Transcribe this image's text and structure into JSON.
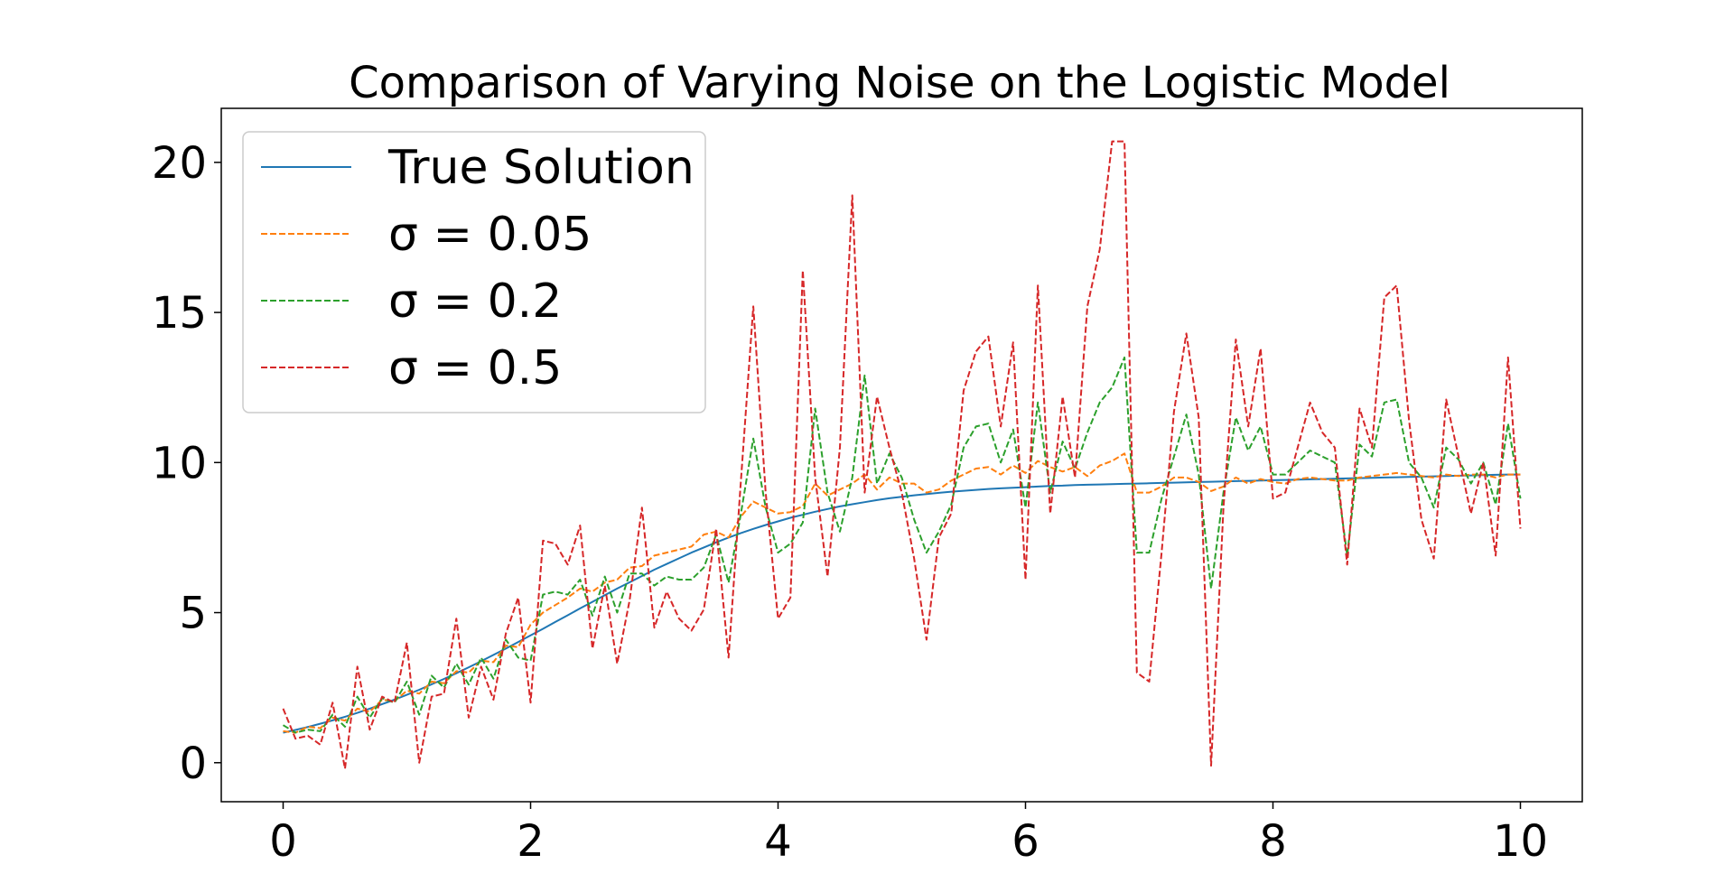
{
  "chart_data": {
    "type": "line",
    "title": "Comparison of Varying Noise on the Logistic Model",
    "xlabel": "",
    "ylabel": "",
    "xlim": [
      -0.5,
      10.5
    ],
    "ylim": [
      -1.3,
      21.8
    ],
    "xticks": [
      0,
      2,
      4,
      6,
      8,
      10
    ],
    "xtick_labels": [
      "0",
      "2",
      "4",
      "6",
      "8",
      "10"
    ],
    "yticks": [
      0,
      5,
      10,
      15,
      20
    ],
    "ytick_labels": [
      "0",
      "5",
      "10",
      "15",
      "20"
    ],
    "grid": false,
    "legend": "top-left",
    "x": [
      0.0,
      0.1,
      0.2,
      0.3,
      0.4,
      0.5,
      0.6,
      0.7,
      0.8,
      0.9,
      1.0,
      1.1,
      1.2,
      1.3,
      1.4,
      1.5,
      1.6,
      1.7,
      1.8,
      1.9,
      2.0,
      2.1,
      2.2,
      2.3,
      2.4,
      2.5,
      2.6,
      2.7,
      2.8,
      2.9,
      3.0,
      3.1,
      3.2,
      3.3,
      3.4,
      3.5,
      3.6,
      3.7,
      3.8,
      3.9,
      4.0,
      4.1,
      4.2,
      4.3,
      4.4,
      4.5,
      4.6,
      4.7,
      4.8,
      4.9,
      5.0,
      5.1,
      5.2,
      5.3,
      5.4,
      5.5,
      5.6,
      5.7,
      5.8,
      5.9,
      6.0,
      6.1,
      6.2,
      6.3,
      6.4,
      6.5,
      6.6,
      6.7,
      6.8,
      6.9,
      7.0,
      7.1,
      7.2,
      7.3,
      7.4,
      7.5,
      7.6,
      7.7,
      7.8,
      7.9,
      8.0,
      8.1,
      8.2,
      8.3,
      8.4,
      8.5,
      8.6,
      8.7,
      8.8,
      8.9,
      9.0,
      9.1,
      9.2,
      9.3,
      9.4,
      9.5,
      9.6,
      9.7,
      9.8,
      9.9,
      10.0
    ],
    "series": [
      {
        "name": "True Solution",
        "color": "#1f77b4",
        "dash": "solid",
        "values": [
          1.0,
          1.09,
          1.19,
          1.3,
          1.41,
          1.53,
          1.66,
          1.8,
          1.95,
          2.1,
          2.26,
          2.43,
          2.61,
          2.79,
          2.98,
          3.18,
          3.38,
          3.59,
          3.8,
          4.02,
          4.24,
          4.46,
          4.69,
          4.91,
          5.14,
          5.36,
          5.58,
          5.8,
          6.01,
          6.22,
          6.43,
          6.62,
          6.81,
          7.0,
          7.17,
          7.34,
          7.5,
          7.65,
          7.79,
          7.92,
          8.04,
          8.16,
          8.26,
          8.36,
          8.45,
          8.54,
          8.61,
          8.68,
          8.75,
          8.81,
          8.86,
          8.91,
          8.95,
          8.99,
          9.03,
          9.06,
          9.09,
          9.12,
          9.14,
          9.16,
          9.18,
          9.2,
          9.22,
          9.23,
          9.25,
          9.26,
          9.27,
          9.28,
          9.29,
          9.3,
          9.31,
          9.32,
          9.33,
          9.34,
          9.35,
          9.36,
          9.37,
          9.38,
          9.39,
          9.4,
          9.41,
          9.42,
          9.43,
          9.44,
          9.45,
          9.46,
          9.47,
          9.48,
          9.49,
          9.5,
          9.51,
          9.52,
          9.53,
          9.54,
          9.55,
          9.56,
          9.57,
          9.58,
          9.59,
          9.6,
          9.6
        ]
      },
      {
        "name": "σ = 0.05",
        "color": "#ff7f0e",
        "dash": "dashed",
        "values": [
          1.05,
          1.0,
          1.2,
          1.15,
          1.5,
          1.4,
          1.8,
          1.7,
          2.1,
          2.05,
          2.4,
          2.3,
          2.7,
          2.65,
          3.05,
          3.0,
          3.4,
          3.35,
          3.9,
          3.85,
          4.6,
          5.0,
          5.25,
          5.5,
          5.8,
          5.7,
          6.0,
          6.1,
          6.5,
          6.55,
          6.9,
          7.0,
          7.1,
          7.2,
          7.6,
          7.7,
          7.5,
          8.2,
          8.7,
          8.5,
          8.3,
          8.35,
          8.55,
          9.3,
          8.9,
          9.1,
          9.3,
          9.6,
          9.1,
          9.5,
          9.3,
          9.3,
          9.0,
          9.1,
          9.4,
          9.6,
          9.8,
          9.85,
          9.6,
          9.9,
          9.65,
          10.05,
          9.85,
          9.7,
          9.85,
          9.55,
          9.9,
          10.05,
          10.3,
          9.0,
          9.0,
          9.2,
          9.5,
          9.5,
          9.35,
          9.05,
          9.2,
          9.5,
          9.3,
          9.45,
          9.35,
          9.3,
          9.45,
          9.5,
          9.45,
          9.4,
          9.4,
          9.5,
          9.55,
          9.6,
          9.65,
          9.6,
          9.55,
          9.5,
          9.6,
          9.55,
          9.6,
          9.6,
          9.5,
          9.6,
          9.6
        ]
      },
      {
        "name": "σ = 0.2",
        "color": "#2ca02c",
        "dash": "dashed",
        "values": [
          1.25,
          1.0,
          1.1,
          1.05,
          1.6,
          1.2,
          2.2,
          1.5,
          2.15,
          2.0,
          2.7,
          1.6,
          2.9,
          2.5,
          3.3,
          2.6,
          3.5,
          2.8,
          4.1,
          3.5,
          3.4,
          5.6,
          5.7,
          5.6,
          6.1,
          4.9,
          6.2,
          5.0,
          6.3,
          6.3,
          5.9,
          6.2,
          6.1,
          6.1,
          6.5,
          7.6,
          6.0,
          8.3,
          10.8,
          8.5,
          7.0,
          7.3,
          8.0,
          11.8,
          9.0,
          7.7,
          9.5,
          12.9,
          9.3,
          10.3,
          9.5,
          8.1,
          7.0,
          7.7,
          8.6,
          10.5,
          11.2,
          11.3,
          10.0,
          11.1,
          8.5,
          12.0,
          9.0,
          10.7,
          9.8,
          11.0,
          12.0,
          12.5,
          13.5,
          7.0,
          7.0,
          8.8,
          10.2,
          11.6,
          9.6,
          5.8,
          9.0,
          11.5,
          10.4,
          11.2,
          9.6,
          9.6,
          10.0,
          10.4,
          10.2,
          10.0,
          6.9,
          10.6,
          10.2,
          12.0,
          12.1,
          10.0,
          9.5,
          8.5,
          10.5,
          10.1,
          9.3,
          10.0,
          8.6,
          11.3,
          8.8
        ]
      },
      {
        "name": "σ = 0.5",
        "color": "#d62728",
        "dash": "dashed",
        "values": [
          1.8,
          0.8,
          0.9,
          0.6,
          2.0,
          -0.2,
          3.2,
          1.1,
          2.2,
          2.0,
          4.0,
          0.0,
          2.2,
          2.3,
          4.8,
          1.5,
          3.2,
          2.1,
          4.3,
          5.5,
          2.0,
          7.4,
          7.3,
          6.6,
          7.9,
          3.8,
          5.9,
          3.3,
          5.4,
          8.5,
          4.5,
          5.7,
          4.8,
          4.4,
          5.1,
          7.8,
          3.5,
          9.4,
          15.2,
          9.0,
          4.8,
          5.5,
          16.4,
          9.5,
          6.2,
          10.5,
          18.9,
          9.0,
          12.2,
          10.5,
          9.0,
          6.8,
          4.1,
          7.5,
          8.3,
          12.4,
          13.7,
          14.2,
          11.2,
          14.0,
          6.1,
          15.9,
          8.3,
          12.2,
          9.5,
          15.2,
          17.1,
          20.7,
          20.7,
          3.0,
          2.7,
          7.0,
          11.7,
          14.3,
          11.5,
          -0.1,
          8.5,
          14.1,
          11.2,
          13.8,
          8.8,
          9.0,
          10.5,
          12.0,
          11.0,
          10.5,
          6.6,
          11.8,
          10.5,
          15.5,
          15.9,
          11.4,
          8.1,
          6.8,
          12.1,
          10.2,
          8.3,
          10.0,
          6.9,
          13.5,
          7.8
        ]
      }
    ]
  }
}
